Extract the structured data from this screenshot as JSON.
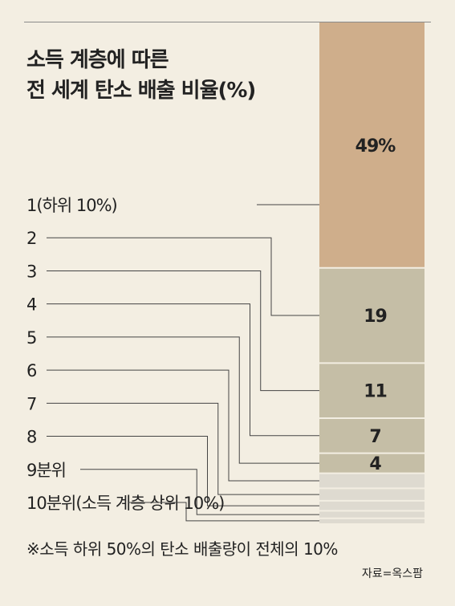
{
  "title_line1": "소득 계층에 따른",
  "title_line2": "전 세계 탄소 배출 비율(%)",
  "note": "※소득 하위 50%의 탄소 배출량이 전체의 10%",
  "source": "자료=옥스팜",
  "colors": {
    "background": "#f3eee2",
    "top_decile": "#cfae8b",
    "middle": "#c5bea6",
    "bottom": "#dedad0",
    "separator": "#f3eee2",
    "text": "#222222"
  },
  "chart_data": {
    "type": "bar",
    "title": "소득 계층에 따른 전 세계 탄소 배출 비율(%)",
    "orientation": "stacked-vertical",
    "categories": [
      "1(하위 10%)",
      "2",
      "3",
      "4",
      "5",
      "6",
      "7",
      "8",
      "9분위",
      "10분위(소득 계층 상위 10%)"
    ],
    "values": [
      1,
      1.5,
      2,
      2.5,
      3,
      4,
      7,
      11,
      19,
      49
    ],
    "value_labels": [
      "",
      "",
      "",
      "",
      "",
      "4",
      "7",
      "11",
      "19",
      "49%"
    ]
  }
}
